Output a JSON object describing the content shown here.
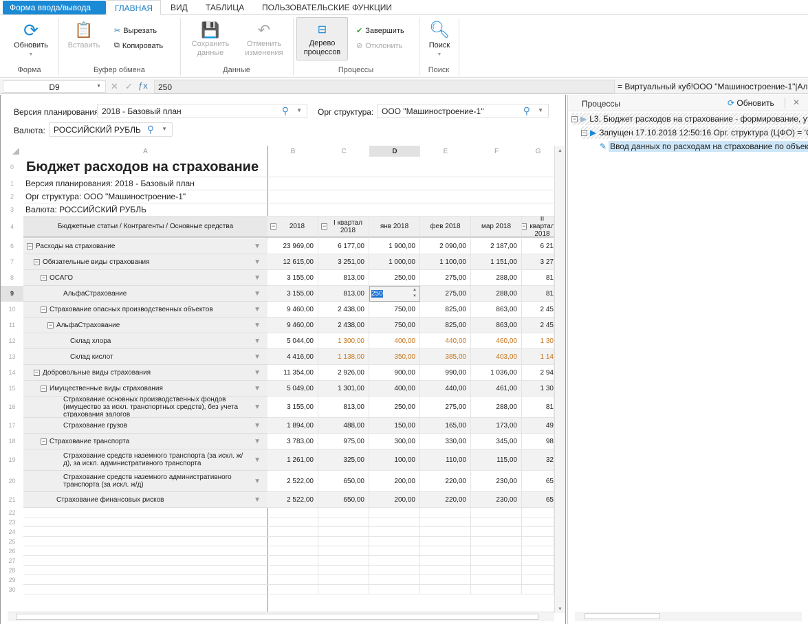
{
  "tabs": {
    "form_menu": "Форма ввода/вывода",
    "items": [
      "ГЛАВНАЯ",
      "ВИД",
      "ТАБЛИЦА",
      "ПОЛЬЗОВАТЕЛЬСКИЕ ФУНКЦИИ"
    ],
    "active": 0
  },
  "ribbon": {
    "refresh": "Обновить",
    "paste": "Вставить",
    "cut": "Вырезать",
    "copy": "Копировать",
    "save": [
      "Сохранить",
      "данные"
    ],
    "undo": [
      "Отменить",
      "изменения"
    ],
    "tree": [
      "Дерево",
      "процессов"
    ],
    "finish": "Завершить",
    "reject": "Отклонить",
    "search": "Поиск",
    "groups": [
      "Форма",
      "Буфер обмена",
      "Данные",
      "Процессы",
      "Поиск"
    ]
  },
  "formula": {
    "cell": "D9",
    "value": "250",
    "reference": "= Виртуальный куб!ООО \"Машиностроение-1\"|Аль..."
  },
  "filters": {
    "version_label": "Версия планирования:",
    "version": "2018 - Базовый план",
    "org_label": "Орг структура:",
    "org": "ООО \"Машиностроение-1\"",
    "currency_label": "Валюта:",
    "currency": "РОССИЙСКИЙ РУБЛЬ"
  },
  "grid": {
    "columns": [
      "A",
      "B",
      "C",
      "D",
      "E",
      "F",
      "G"
    ],
    "selected_column": "D",
    "title": "Бюджет расходов на страхование",
    "info": [
      "Версия планирования: 2018 - Базовый план",
      "Орг структура: ООО \"Машиностроение-1\"",
      "Валюта: РОССИЙСКИЙ РУБЛЬ"
    ],
    "header_a": "Бюджетные статьи / Контрагенты / Основные средства",
    "headers": [
      "2018",
      "I квартал 2018",
      "янв 2018",
      "фев 2018",
      "мар 2018",
      "II квартал 2018"
    ],
    "editing": {
      "row": "9",
      "value": "250"
    },
    "rows": [
      {
        "n": "6",
        "label": "Расходы на страхование",
        "lvl": 0,
        "exp": true,
        "v": [
          "23 969,00",
          "6 177,00",
          "1 900,00",
          "2 090,00",
          "2 187,00",
          "6 21"
        ]
      },
      {
        "n": "7",
        "label": "Обязательные виды страхования",
        "lvl": 1,
        "exp": true,
        "v": [
          "12 615,00",
          "3 251,00",
          "1 000,00",
          "1 100,00",
          "1 151,00",
          "3 27"
        ]
      },
      {
        "n": "8",
        "label": "ОСАГО",
        "lvl": 2,
        "exp": true,
        "v": [
          "3 155,00",
          "813,00",
          "250,00",
          "275,00",
          "288,00",
          "81"
        ]
      },
      {
        "n": "9",
        "label": "АльфаСтрахование",
        "lvl": 4,
        "v": [
          "3 155,00",
          "813,00",
          "",
          "275,00",
          "288,00",
          "81"
        ]
      },
      {
        "n": "10",
        "label": "Страхование опасных производственных объектов",
        "lvl": 2,
        "exp": true,
        "v": [
          "9 460,00",
          "2 438,00",
          "750,00",
          "825,00",
          "863,00",
          "2 45"
        ]
      },
      {
        "n": "11",
        "label": "АльфаСтрахование",
        "lvl": 3,
        "exp": true,
        "v": [
          "9 460,00",
          "2 438,00",
          "750,00",
          "825,00",
          "863,00",
          "2 45"
        ]
      },
      {
        "n": "12",
        "label": "Склад хлора",
        "lvl": 5,
        "v": [
          "5 044,00",
          "1 300,00",
          "400,00",
          "440,00",
          "460,00",
          "1 30"
        ]
      },
      {
        "n": "13",
        "label": "Склад кислот",
        "lvl": 5,
        "v": [
          "4 416,00",
          "1 138,00",
          "350,00",
          "385,00",
          "403,00",
          "1 14"
        ]
      },
      {
        "n": "14",
        "label": "Добровольные виды страхования",
        "lvl": 1,
        "exp": true,
        "v": [
          "11 354,00",
          "2 926,00",
          "900,00",
          "990,00",
          "1 036,00",
          "2 94"
        ]
      },
      {
        "n": "15",
        "label": "Имущественные виды страхования",
        "lvl": 2,
        "exp": true,
        "v": [
          "5 049,00",
          "1 301,00",
          "400,00",
          "440,00",
          "461,00",
          "1 30"
        ]
      },
      {
        "n": "16",
        "label": "Страхование основных производственных фондов (имущество за искл. транспортных средств), без учета страхования залогов",
        "lvl": 4,
        "tall": true,
        "v": [
          "3 155,00",
          "813,00",
          "250,00",
          "275,00",
          "288,00",
          "81"
        ]
      },
      {
        "n": "17",
        "label": "Страхование грузов",
        "lvl": 4,
        "v": [
          "1 894,00",
          "488,00",
          "150,00",
          "165,00",
          "173,00",
          "49"
        ]
      },
      {
        "n": "18",
        "label": "Страхование транспорта",
        "lvl": 2,
        "exp": true,
        "v": [
          "3 783,00",
          "975,00",
          "300,00",
          "330,00",
          "345,00",
          "98"
        ]
      },
      {
        "n": "19",
        "label": "Страхование средств наземного транспорта (за искл. ж/д), за искл. административного транспорта",
        "lvl": 4,
        "tall": true,
        "v": [
          "1 261,00",
          "325,00",
          "100,00",
          "110,00",
          "115,00",
          "32"
        ]
      },
      {
        "n": "20",
        "label": "Страхование средств наземного административного транспорта (за искл. ж/д)",
        "lvl": 4,
        "tall": true,
        "v": [
          "2 522,00",
          "650,00",
          "200,00",
          "220,00",
          "230,00",
          "65"
        ]
      },
      {
        "n": "21",
        "label": "Страхование финансовых рисков",
        "lvl": 3,
        "v": [
          "2 522,00",
          "650,00",
          "200,00",
          "220,00",
          "230,00",
          "65"
        ]
      }
    ],
    "empty_rows": [
      "22",
      "23",
      "24",
      "25",
      "26",
      "27",
      "28",
      "29",
      "30"
    ],
    "top_rows": [
      "0",
      "1",
      "2",
      "3",
      "4"
    ]
  },
  "processes": {
    "title": "Процессы",
    "refresh": "Обновить",
    "items": [
      "L3. Бюджет расходов на страхование - формирование, утвер",
      "Запущен 17.10.2018 12:50:16 Орг. структура (ЦФО) = 'ООО",
      "Ввод данных по расходам на страхование по объектам"
    ]
  },
  "colors": {
    "accent": "#1b8ad4",
    "selection": "#cde6f7"
  }
}
